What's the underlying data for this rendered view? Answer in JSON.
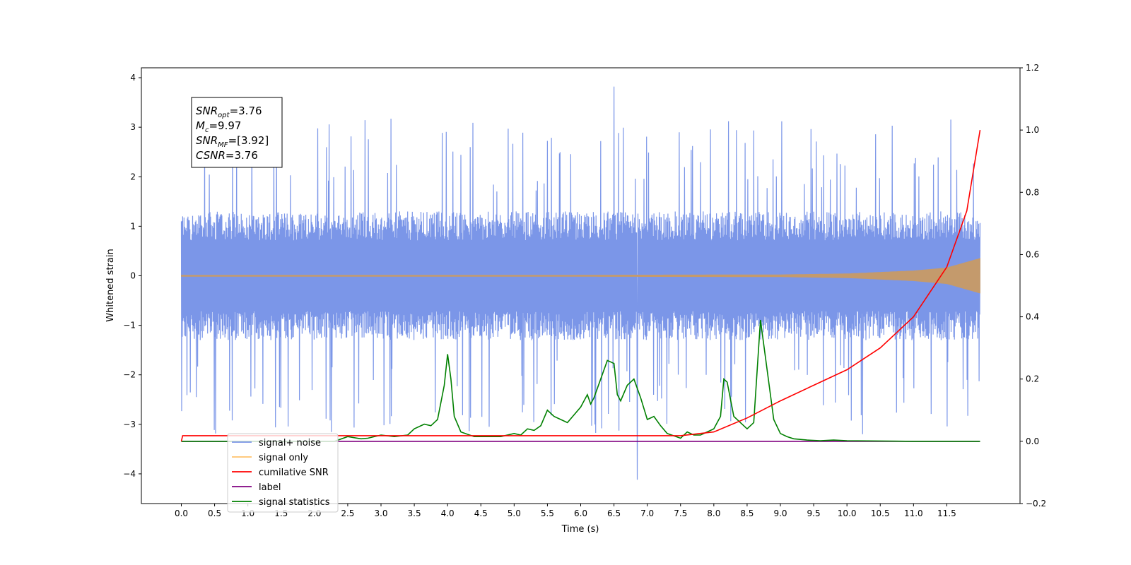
{
  "chart_data": {
    "type": "line",
    "xlabel": "Time (s)",
    "ylabel": "Whitened strain",
    "xlim": [
      -0.6,
      12.6
    ],
    "ylim": [
      -4.6,
      4.2
    ],
    "y2lim": [
      -0.2,
      1.2
    ],
    "x_ticks": [
      "0.0",
      "0.5",
      "1.0",
      "1.5",
      "2.0",
      "2.5",
      "3.0",
      "3.5",
      "4.0",
      "4.5",
      "5.0",
      "5.5",
      "6.0",
      "6.5",
      "7.0",
      "7.5",
      "8.0",
      "8.5",
      "9.0",
      "9.5",
      "10.0",
      "10.5",
      "11.0",
      "11.5"
    ],
    "y_ticks": [
      "4",
      "3",
      "2",
      "1",
      "0",
      "−1",
      "−2",
      "−3",
      "−4"
    ],
    "y2_ticks": [
      "1.2",
      "1.0",
      "0.8",
      "0.6",
      "0.4",
      "0.2",
      "0.0",
      "−0.2"
    ],
    "grid": false,
    "annotation": {
      "lines": [
        {
          "sym": "SNR",
          "sub": "opt",
          "val": "=3.76"
        },
        {
          "sym": "M",
          "sub": "c",
          "val": "=9.97"
        },
        {
          "sym": "SNR",
          "sub": "MF",
          "val": "=[3.92]"
        },
        {
          "sym": "CSNR",
          "sub": "",
          "val": "=3.76"
        }
      ]
    },
    "legend": {
      "placement": "lower-left",
      "entries": [
        {
          "label": "signal+ noise",
          "color": "#7b96e8"
        },
        {
          "label": "signal only",
          "color": "#ffc36b"
        },
        {
          "label": "cumilative SNR",
          "color": "#ff0000"
        },
        {
          "label": "label",
          "color": "#800080"
        },
        {
          "label": "signal statistics",
          "color": "#008000"
        }
      ]
    },
    "series": [
      {
        "name": "signal+ noise",
        "axis": "left",
        "color": "#7b96e8",
        "x_range": [
          0.0,
          12.0
        ],
        "typical_band": [
          -1.3,
          1.3
        ],
        "max": 3.82,
        "min": -4.12
      },
      {
        "name": "signal only",
        "axis": "left",
        "color": "#c49a6c",
        "x": [
          0.0,
          9.0,
          10.0,
          11.0,
          11.5,
          12.0
        ],
        "envelope": [
          0.0,
          0.02,
          0.04,
          0.1,
          0.16,
          0.35
        ]
      },
      {
        "name": "cumilative SNR",
        "axis": "right",
        "color": "#ff0000",
        "x": [
          0.0,
          0.02,
          7.5,
          8.0,
          8.5,
          9.0,
          9.5,
          10.0,
          10.5,
          11.0,
          11.5,
          11.8,
          12.0
        ],
        "values": [
          0.0,
          0.018,
          0.018,
          0.03,
          0.075,
          0.13,
          0.18,
          0.23,
          0.3,
          0.4,
          0.56,
          0.74,
          1.0
        ]
      },
      {
        "name": "label",
        "axis": "right",
        "color": "#800080",
        "x": [
          0.0,
          12.0
        ],
        "values": [
          0.0,
          0.0
        ]
      },
      {
        "name": "signal statistics",
        "axis": "right",
        "color": "#008000",
        "x": [
          0.0,
          2.3,
          2.5,
          2.7,
          2.8,
          3.0,
          3.2,
          3.4,
          3.5,
          3.65,
          3.75,
          3.85,
          3.95,
          4.0,
          4.05,
          4.1,
          4.2,
          4.4,
          4.6,
          4.8,
          5.0,
          5.1,
          5.2,
          5.3,
          5.4,
          5.5,
          5.6,
          5.7,
          5.8,
          5.9,
          6.0,
          6.1,
          6.15,
          6.2,
          6.3,
          6.4,
          6.5,
          6.55,
          6.6,
          6.7,
          6.8,
          6.9,
          7.0,
          7.1,
          7.2,
          7.3,
          7.5,
          7.6,
          7.7,
          7.8,
          8.0,
          8.1,
          8.15,
          8.2,
          8.3,
          8.4,
          8.5,
          8.6,
          8.7,
          8.8,
          8.85,
          8.9,
          9.0,
          9.1,
          9.2,
          9.4,
          9.6,
          9.8,
          10.0,
          11.0,
          12.0
        ],
        "values": [
          0.0,
          0.0,
          0.015,
          0.008,
          0.01,
          0.02,
          0.015,
          0.02,
          0.04,
          0.055,
          0.05,
          0.07,
          0.18,
          0.28,
          0.2,
          0.08,
          0.03,
          0.015,
          0.015,
          0.015,
          0.025,
          0.02,
          0.04,
          0.035,
          0.05,
          0.1,
          0.08,
          0.07,
          0.06,
          0.085,
          0.11,
          0.15,
          0.12,
          0.14,
          0.2,
          0.26,
          0.25,
          0.15,
          0.13,
          0.18,
          0.2,
          0.14,
          0.07,
          0.08,
          0.05,
          0.025,
          0.01,
          0.03,
          0.02,
          0.02,
          0.04,
          0.08,
          0.2,
          0.19,
          0.08,
          0.06,
          0.04,
          0.06,
          0.39,
          0.23,
          0.15,
          0.07,
          0.025,
          0.015,
          0.008,
          0.004,
          0.002,
          0.004,
          0.002,
          0.0,
          0.0
        ]
      }
    ]
  }
}
